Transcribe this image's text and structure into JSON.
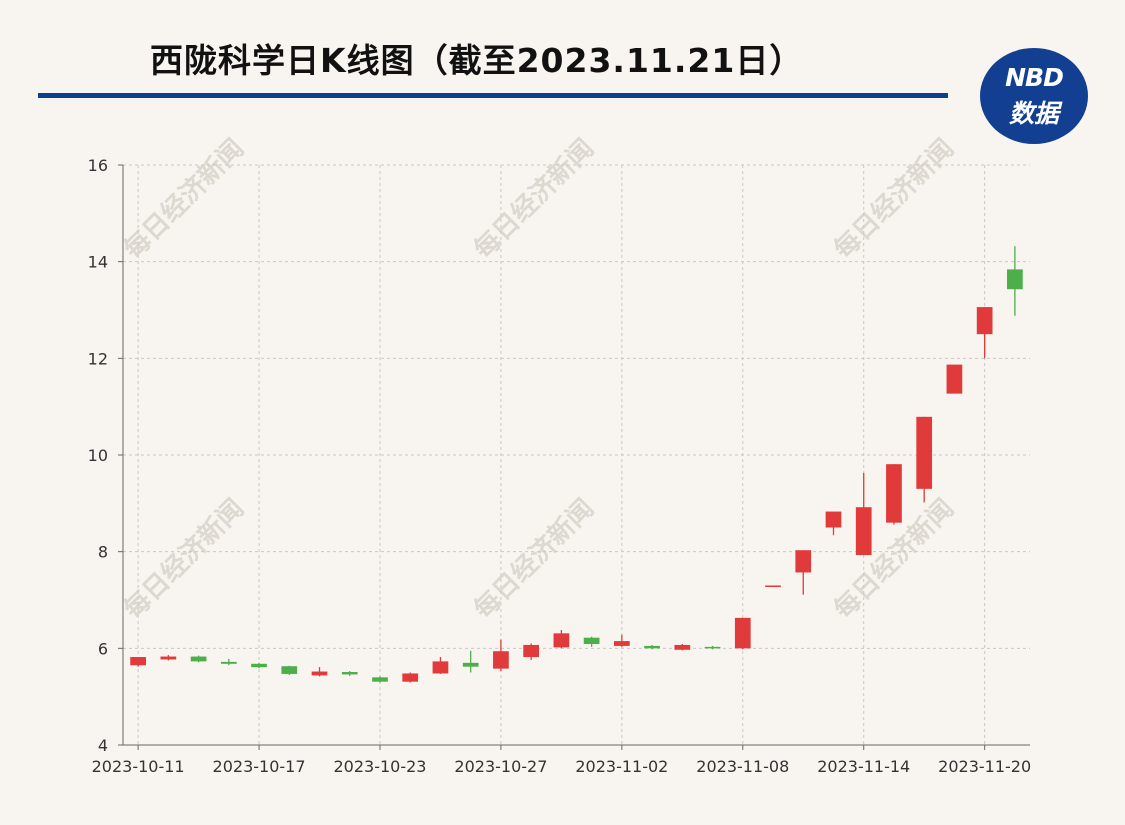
{
  "header": {
    "title": "西陇科学日K线图（截至2023.11.21日）",
    "logo_top": "NBD",
    "logo_bottom": "数据"
  },
  "watermark": "每日经济新闻",
  "colors": {
    "up": "#e03a3a",
    "down": "#4daf4a",
    "title_rule": "#0b3f8f",
    "grid": "#c8c8c8",
    "axis": "#666666"
  },
  "chart_data": {
    "type": "candlestick",
    "title": "西陇科学日K线图（截至2023.11.21日）",
    "ylim": [
      4,
      16
    ],
    "y_ticks": [
      4,
      6,
      8,
      10,
      12,
      14,
      16
    ],
    "x_ticks": [
      "2023-10-11",
      "2023-10-17",
      "2023-10-23",
      "2023-10-27",
      "2023-11-02",
      "2023-11-08",
      "2023-11-14",
      "2023-11-20"
    ],
    "grid": true,
    "candles": [
      {
        "date": "2023-10-11",
        "open": 5.65,
        "close": 5.82,
        "high": 5.82,
        "low": 5.62
      },
      {
        "date": "2023-10-12",
        "open": 5.77,
        "close": 5.83,
        "high": 5.86,
        "low": 5.75
      },
      {
        "date": "2023-10-13",
        "open": 5.83,
        "close": 5.73,
        "high": 5.85,
        "low": 5.71
      },
      {
        "date": "2023-10-16",
        "open": 5.72,
        "close": 5.68,
        "high": 5.78,
        "low": 5.65
      },
      {
        "date": "2023-10-17",
        "open": 5.68,
        "close": 5.61,
        "high": 5.7,
        "low": 5.59
      },
      {
        "date": "2023-10-18",
        "open": 5.63,
        "close": 5.47,
        "high": 5.64,
        "low": 5.45
      },
      {
        "date": "2023-10-19",
        "open": 5.44,
        "close": 5.52,
        "high": 5.61,
        "low": 5.42
      },
      {
        "date": "2023-10-20",
        "open": 5.51,
        "close": 5.46,
        "high": 5.53,
        "low": 5.43
      },
      {
        "date": "2023-10-23",
        "open": 5.4,
        "close": 5.31,
        "high": 5.42,
        "low": 5.29
      },
      {
        "date": "2023-10-24",
        "open": 5.31,
        "close": 5.48,
        "high": 5.5,
        "low": 5.29
      },
      {
        "date": "2023-10-25",
        "open": 5.48,
        "close": 5.73,
        "high": 5.82,
        "low": 5.47
      },
      {
        "date": "2023-10-26",
        "open": 5.7,
        "close": 5.62,
        "high": 5.95,
        "low": 5.5
      },
      {
        "date": "2023-10-27",
        "open": 5.58,
        "close": 5.94,
        "high": 6.18,
        "low": 5.53
      },
      {
        "date": "2023-10-30",
        "open": 5.82,
        "close": 6.07,
        "high": 6.1,
        "low": 5.76
      },
      {
        "date": "2023-10-31",
        "open": 6.02,
        "close": 6.31,
        "high": 6.38,
        "low": 6.0
      },
      {
        "date": "2023-11-01",
        "open": 6.22,
        "close": 6.09,
        "high": 6.24,
        "low": 6.03
      },
      {
        "date": "2023-11-02",
        "open": 6.05,
        "close": 6.15,
        "high": 6.28,
        "low": 6.03
      },
      {
        "date": "2023-11-03",
        "open": 6.05,
        "close": 6.0,
        "high": 6.07,
        "low": 5.98
      },
      {
        "date": "2023-11-06",
        "open": 5.97,
        "close": 6.07,
        "high": 6.09,
        "low": 5.96
      },
      {
        "date": "2023-11-07",
        "open": 6.03,
        "close": 6.0,
        "high": 6.05,
        "low": 5.98
      },
      {
        "date": "2023-11-08",
        "open": 6.0,
        "close": 6.63,
        "high": 6.63,
        "low": 5.98
      },
      {
        "date": "2023-11-09",
        "open": 7.3,
        "close": 7.3,
        "high": 7.3,
        "low": 7.3
      },
      {
        "date": "2023-11-10",
        "open": 7.57,
        "close": 8.03,
        "high": 8.03,
        "low": 7.11
      },
      {
        "date": "2023-11-13",
        "open": 8.5,
        "close": 8.83,
        "high": 8.83,
        "low": 8.34
      },
      {
        "date": "2023-11-14",
        "open": 7.93,
        "close": 8.92,
        "high": 9.63,
        "low": 7.93
      },
      {
        "date": "2023-11-15",
        "open": 8.6,
        "close": 9.81,
        "high": 9.81,
        "low": 8.56
      },
      {
        "date": "2023-11-16",
        "open": 9.3,
        "close": 10.79,
        "high": 10.79,
        "low": 9.02
      },
      {
        "date": "2023-11-17",
        "open": 11.27,
        "close": 11.87,
        "high": 11.87,
        "low": 11.27
      },
      {
        "date": "2023-11-20",
        "open": 12.5,
        "close": 13.06,
        "high": 13.06,
        "low": 12.0
      },
      {
        "date": "2023-11-21",
        "open": 13.84,
        "close": 13.43,
        "high": 14.32,
        "low": 12.88
      }
    ]
  }
}
